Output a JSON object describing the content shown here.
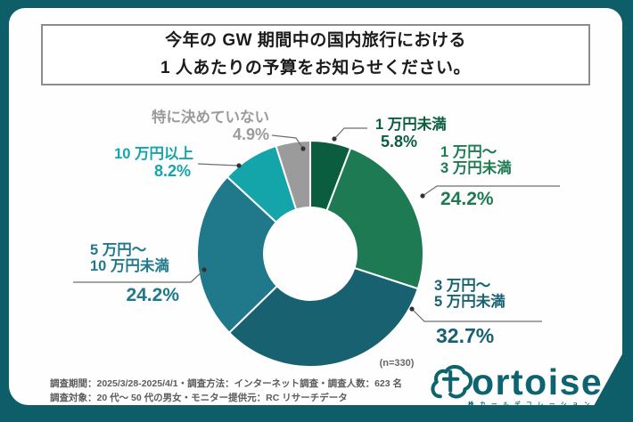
{
  "frame": {
    "bg_color": "#0e5e69",
    "card_color": "#fdfefd"
  },
  "title": {
    "line1": "今年の GW 期間中の国内旅行における",
    "line2": "1 人あたりの予算をお知らせください。"
  },
  "chart_data": {
    "type": "pie",
    "donut": true,
    "title": "今年のGW期間中の国内旅行における1人あたりの予算をお知らせください。",
    "sample_label": "(n=330)",
    "start_angle_deg": 0,
    "direction": "clockwise",
    "legend_position": "callouts-around-donut",
    "segments": [
      {
        "label": "1 万円未満",
        "pct": 5.8,
        "pct_label": "5.8%",
        "color": "#0a5d3e",
        "name_lines": [
          "1 万円未満"
        ]
      },
      {
        "label": "1 万円〜3 万円未満",
        "pct": 24.2,
        "pct_label": "24.2%",
        "color": "#1e7a52",
        "name_lines": [
          "1 万円〜",
          "3 万円未満"
        ]
      },
      {
        "label": "3 万円〜5 万円未満",
        "pct": 32.7,
        "pct_label": "32.7%",
        "color": "#176170",
        "name_lines": [
          "3 万円〜",
          "5 万円未満"
        ]
      },
      {
        "label": "5 万円〜10 万円未満",
        "pct": 24.2,
        "pct_label": "24.2%",
        "color": "#20798b",
        "name_lines": [
          "5 万円〜",
          "10 万円未満"
        ]
      },
      {
        "label": "10 万円以上",
        "pct": 8.2,
        "pct_label": "8.2%",
        "color": "#14a5ab",
        "name_lines": [
          "10 万円以上"
        ]
      },
      {
        "label": "特に決めていない",
        "pct": 4.9,
        "pct_label": "4.9%",
        "color": "#9b9b9b",
        "name_lines": [
          "特に決めていない"
        ]
      }
    ]
  },
  "footer": {
    "line1": "調査期間：2025/3/28-2025/4/1・調査方法：インターネット調査・調査人数：623 名",
    "line2": "調査対象：20 代〜 50 代の男女・モニター提供元：RC リサーチデータ"
  },
  "logo": {
    "brand_display": "ortoise",
    "brand_full": "tortoise",
    "tagline": "株カールデコレーション",
    "color": "#0d6470"
  }
}
